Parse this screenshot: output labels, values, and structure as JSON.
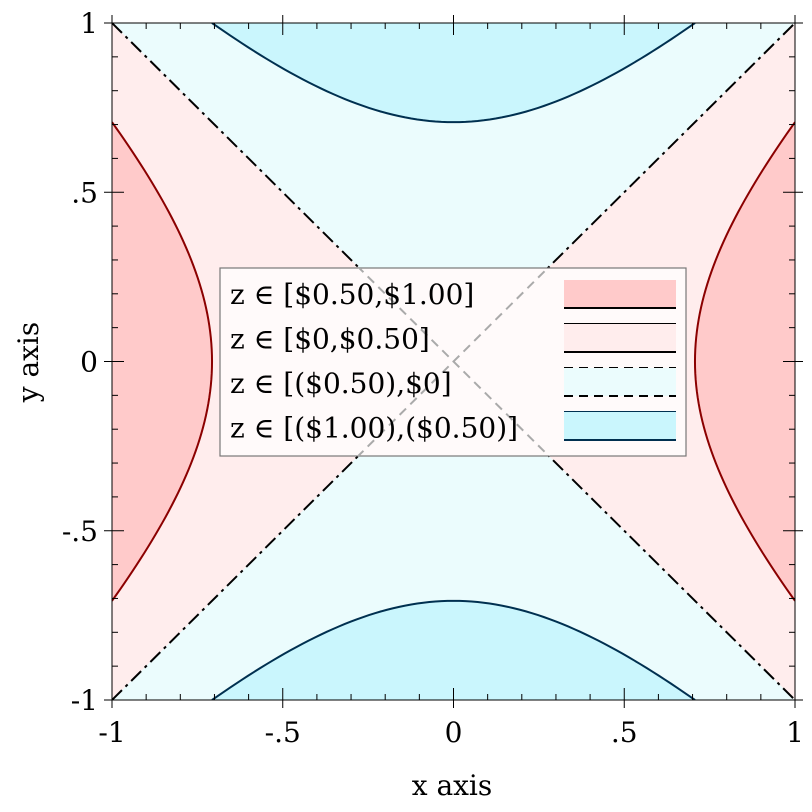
{
  "chart_data": {
    "type": "contour",
    "function": "z = x^2 - y^2",
    "xlabel": "x axis",
    "ylabel": "y axis",
    "xlim": [
      -1,
      1
    ],
    "ylim": [
      -1,
      1
    ],
    "x_ticks": [
      {
        "value": -1,
        "label": "-1"
      },
      {
        "value": -0.5,
        "label": "-.5"
      },
      {
        "value": 0,
        "label": "0"
      },
      {
        "value": 0.5,
        "label": ".5"
      },
      {
        "value": 1,
        "label": "1"
      }
    ],
    "y_ticks": [
      {
        "value": -1,
        "label": "-1"
      },
      {
        "value": -0.5,
        "label": "-.5"
      },
      {
        "value": 0,
        "label": "0"
      },
      {
        "value": 0.5,
        "label": ".5"
      },
      {
        "value": 1,
        "label": "1"
      }
    ],
    "contour_levels": [
      {
        "value": 0.5,
        "color": "#8b0000",
        "style": "solid"
      },
      {
        "value": 0,
        "color": "#000000",
        "style": "dashdot"
      },
      {
        "value": -0.5,
        "color": "#003050",
        "style": "solid"
      }
    ],
    "regions": [
      {
        "label": "z ∈ [$0.50,$1.00]",
        "range": [
          0.5,
          1.0
        ],
        "fill": "#ffcaca",
        "upper_line_color": "#000000",
        "upper_line_style": "solid",
        "lower_line_color": "#000000",
        "lower_line_style": "solid"
      },
      {
        "label": "z ∈ [$0,$0.50]",
        "range": [
          0,
          0.5
        ],
        "fill": "#ffeded",
        "upper_line_color": "#000000",
        "upper_line_style": "solid",
        "lower_line_color": "#000000",
        "lower_line_style": "dashed"
      },
      {
        "label": "z ∈ [($0.50),$0]",
        "range": [
          -0.5,
          0
        ],
        "fill": "#ebfcfd",
        "upper_line_color": "#000000",
        "upper_line_style": "dashed",
        "lower_line_color": "#003050",
        "lower_line_style": "solid"
      },
      {
        "label": "z ∈ [($1.00),($0.50)]",
        "range": [
          -1.0,
          -0.5
        ],
        "fill": "#caf6fd",
        "upper_line_color": "#003050",
        "upper_line_style": "solid",
        "lower_line_color": "#000000",
        "lower_line_style": "solid"
      }
    ],
    "legend": {
      "position": "center"
    },
    "diagonal_guides": {
      "color": "#aaaaaa",
      "style": "dashed"
    }
  }
}
